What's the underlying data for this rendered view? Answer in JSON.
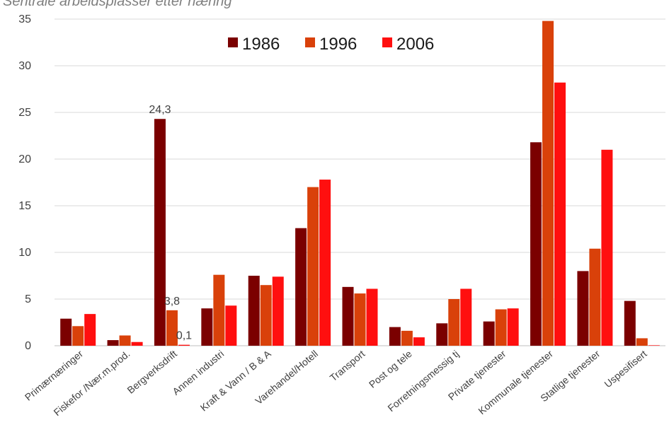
{
  "chart_data": {
    "type": "bar",
    "title": "Sentrale arbeidsplasser etter næring",
    "categories": [
      "Primærnæringer",
      "Fiskefor /Nær.m.prod.",
      "Bergverksdrift",
      "Annen industri",
      "Kraft & Vann / B & A",
      "Varehandel/Hotell",
      "Transport",
      "Post og tele",
      "Forretningsmessig tj",
      "Private tjenester",
      "Kommunale tjenester",
      "Statlige tjenester",
      "Uspesifisert"
    ],
    "series": [
      {
        "name": "1986",
        "color": "#7b0000",
        "values": [
          2.9,
          0.6,
          24.3,
          4.0,
          7.5,
          12.6,
          6.3,
          2.0,
          2.4,
          2.6,
          21.8,
          8.0,
          4.8
        ]
      },
      {
        "name": "1996",
        "color": "#d9410a",
        "values": [
          2.1,
          1.1,
          3.8,
          7.6,
          6.5,
          17.0,
          5.6,
          1.6,
          5.0,
          3.9,
          34.8,
          10.4,
          0.8
        ]
      },
      {
        "name": "2006",
        "color": "#ff0f0f",
        "values": [
          3.4,
          0.4,
          0.1,
          4.3,
          7.4,
          17.8,
          6.1,
          0.9,
          6.1,
          4.0,
          28.2,
          21.0,
          0.05
        ]
      }
    ],
    "data_labels": [
      {
        "series": 0,
        "category": 2,
        "text": "24,3"
      },
      {
        "series": 1,
        "category": 2,
        "text": "3,8"
      },
      {
        "series": 2,
        "category": 2,
        "text": "0,1"
      }
    ],
    "yticks": [
      0,
      5,
      10,
      15,
      20,
      25,
      30,
      35
    ],
    "ylim": [
      0,
      35
    ],
    "grid": true,
    "legend": "top-center"
  }
}
